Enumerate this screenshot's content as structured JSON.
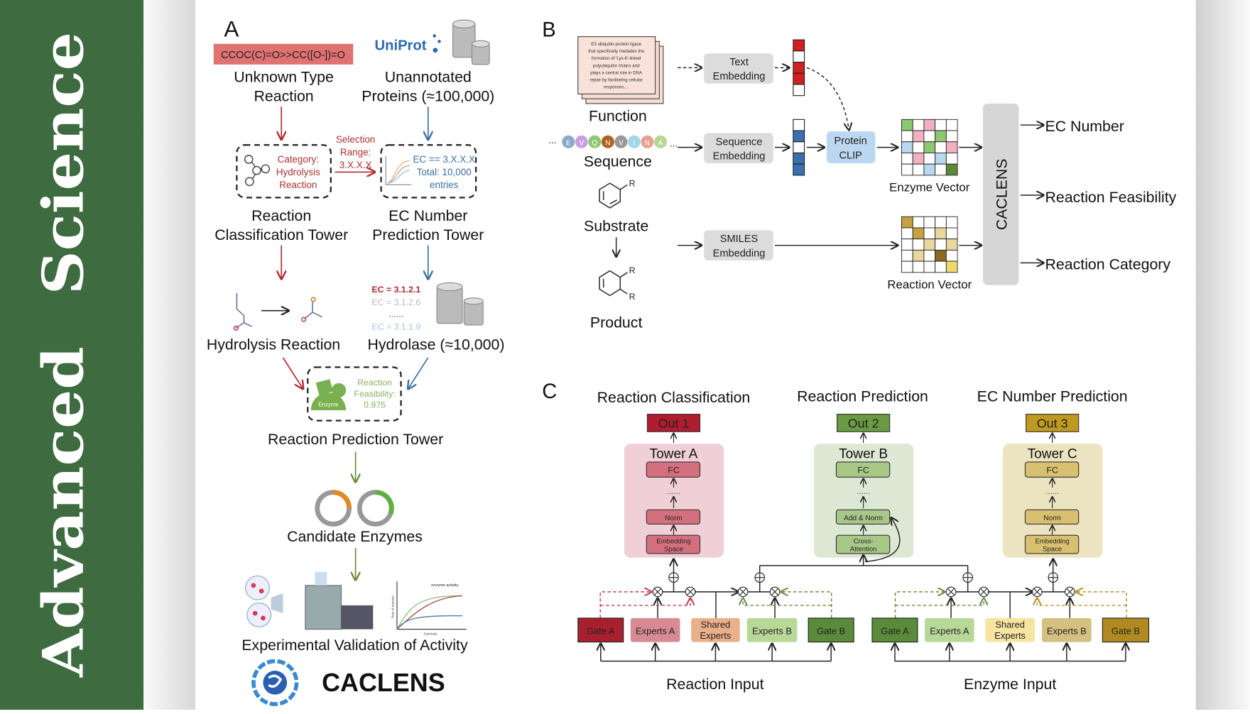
{
  "side_banner": {
    "word1": "Advanced",
    "word2": "Science",
    "color": "#3e6b40"
  },
  "panel_a": {
    "label": "A",
    "smiles": "CCOC(C)=O>>CC([O-])=O",
    "uniprot_logo": "UniProt",
    "unknown_reaction": [
      "Unknown Type",
      "Reaction"
    ],
    "unannotated": [
      "Unannotated",
      "Proteins (≈100,000)"
    ],
    "category_box": [
      "Category:",
      "Hydrolysis",
      "Reaction"
    ],
    "selection": [
      "Selection",
      "Range:",
      "3.X.X.X"
    ],
    "ec_box": [
      "EC == 3.X.X.X",
      "Total: 10,000",
      "entries"
    ],
    "classification_tower": [
      "Reaction",
      "Classification Tower"
    ],
    "ec_tower": [
      "EC Number",
      "Prediction Tower"
    ],
    "ec_list": [
      "EC = 3.1.2.1",
      "EC = 3.1.2.6",
      "......",
      "EC = 3.1.1.9"
    ],
    "hydrolysis": "Hydrolysis Reaction",
    "hydrolase": "Hydrolase (≈10,000)",
    "enzyme_label": "Enzyme",
    "feasibility": [
      "Reaction",
      "Feasibility:",
      "0.975"
    ],
    "prediction_tower": "Reaction Prediction Tower",
    "candidate": "Candidate Enzymes",
    "activity_chart": {
      "title": "enzyme activity",
      "xlabel": "Substrate",
      "ylabel": "Rate of reaction"
    },
    "validation": "Experimental Validation of Activity",
    "logo": "CACLENS"
  },
  "panel_b": {
    "label": "B",
    "function_text": [
      "E3 ubiquitin-protein ligase",
      "that specifically mediates the",
      "formation of 'Lys-6'-linked",
      "polyubiquitin chains and",
      "plays a central role in DNA",
      "repair by facilitating cellular",
      "responses...."
    ],
    "function": "Function",
    "sequence_letters": [
      "E",
      "V",
      "Q",
      "N",
      "V",
      "I",
      "N",
      "A"
    ],
    "ellipsis": "...",
    "sequence": "Sequence",
    "substrate": "Substrate",
    "product": "Product",
    "r_group": "R",
    "text_embedding": [
      "Text",
      "Embedding"
    ],
    "sequence_embedding": [
      "Sequence",
      "Embedding"
    ],
    "smiles_embedding": [
      "SMILES",
      "Embedding"
    ],
    "protein_clip": [
      "Protein",
      "CLIP"
    ],
    "enzyme_vector": "Enzyme Vector",
    "reaction_vector": "Reaction Vector",
    "caclens": "CACLENS",
    "outputs": [
      "EC Number",
      "Reaction Feasibility",
      "Reaction Category"
    ]
  },
  "panel_c": {
    "label": "C",
    "headings": [
      "Reaction Classification",
      "Reaction Prediction",
      "EC Number Prediction"
    ],
    "outs": [
      "Out 1",
      "Out 2",
      "Out 3"
    ],
    "towers": [
      {
        "title": "Tower A",
        "fc": "FC",
        "mid": "Norm",
        "bottom": [
          "Embedding",
          "Space"
        ],
        "dots": "......"
      },
      {
        "title": "Tower B",
        "fc": "FC",
        "mid": "Add & Norm",
        "bottom": [
          "Cross-",
          "Attention"
        ],
        "dots": "......"
      },
      {
        "title": "Tower C",
        "fc": "FC",
        "mid": "Norm",
        "bottom": [
          "Embedding",
          "Space"
        ],
        "dots": "......"
      }
    ],
    "left_modules": [
      "Gate A",
      "Experts A",
      "Shared|Experts",
      "Experts B",
      "Gate B"
    ],
    "right_modules": [
      "Gate A",
      "Experts A",
      "Shared|Experts",
      "Experts B",
      "Gate B"
    ],
    "shared": [
      "Shared",
      "Experts"
    ],
    "reaction_input": "Reaction Input",
    "enzyme_input": "Enzyme Input",
    "colors": {
      "out1": "#b01c30",
      "out2": "#5a8a3a",
      "out3": "#b89020"
    }
  }
}
